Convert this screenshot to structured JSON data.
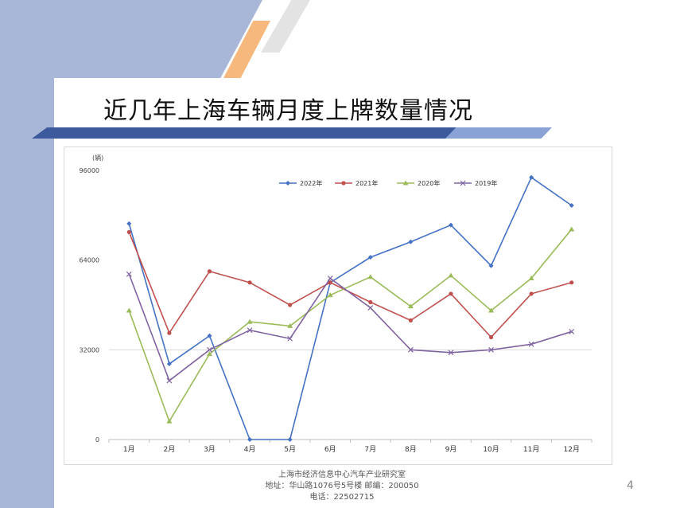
{
  "slide": {
    "title": "近几年上海车辆月度上牌数量情况",
    "page_number": "4",
    "footer": {
      "line1": "上海市经济信息中心汽车产业研究室",
      "line2": "地址：华山路1076号5号楼    邮编：200050",
      "line3": "电话：22502715"
    }
  },
  "colors": {
    "band": "#a8b6d8",
    "accent_orange": "#f6b87c",
    "title_bar": "#3d5a9c"
  },
  "chart_data": {
    "type": "line",
    "unit_label": "(辆)",
    "categories": [
      "1月",
      "2月",
      "3月",
      "4月",
      "5月",
      "6月",
      "7月",
      "8月",
      "9月",
      "10月",
      "11月",
      "12月"
    ],
    "y_ticks": [
      "0",
      "32000",
      "64000",
      "96000"
    ],
    "ylim": [
      0,
      96000
    ],
    "gridlines": "horizontal, at 32000 only",
    "legend_position": "top-right",
    "series": [
      {
        "name": "2022年",
        "color": "#4472c4",
        "marker": "diamond",
        "values": [
          77000,
          27000,
          37000,
          0,
          0,
          56000,
          65000,
          70500,
          76500,
          62000,
          93500,
          83500
        ]
      },
      {
        "name": "2021年",
        "color": "#c0504d",
        "marker": "circle",
        "values": [
          74000,
          38000,
          60000,
          56000,
          48000,
          56000,
          49000,
          42500,
          52000,
          36500,
          52000,
          56000
        ]
      },
      {
        "name": "2020年",
        "color": "#9bbb59",
        "marker": "triangle",
        "values": [
          46000,
          6500,
          30500,
          42000,
          40500,
          51500,
          58000,
          47500,
          58500,
          46000,
          57500,
          75000
        ]
      },
      {
        "name": "2019年",
        "color": "#8064a2",
        "marker": "x",
        "values": [
          59000,
          21000,
          32000,
          39000,
          36000,
          57500,
          47000,
          32000,
          31000,
          32000,
          34000,
          38500
        ]
      }
    ]
  }
}
